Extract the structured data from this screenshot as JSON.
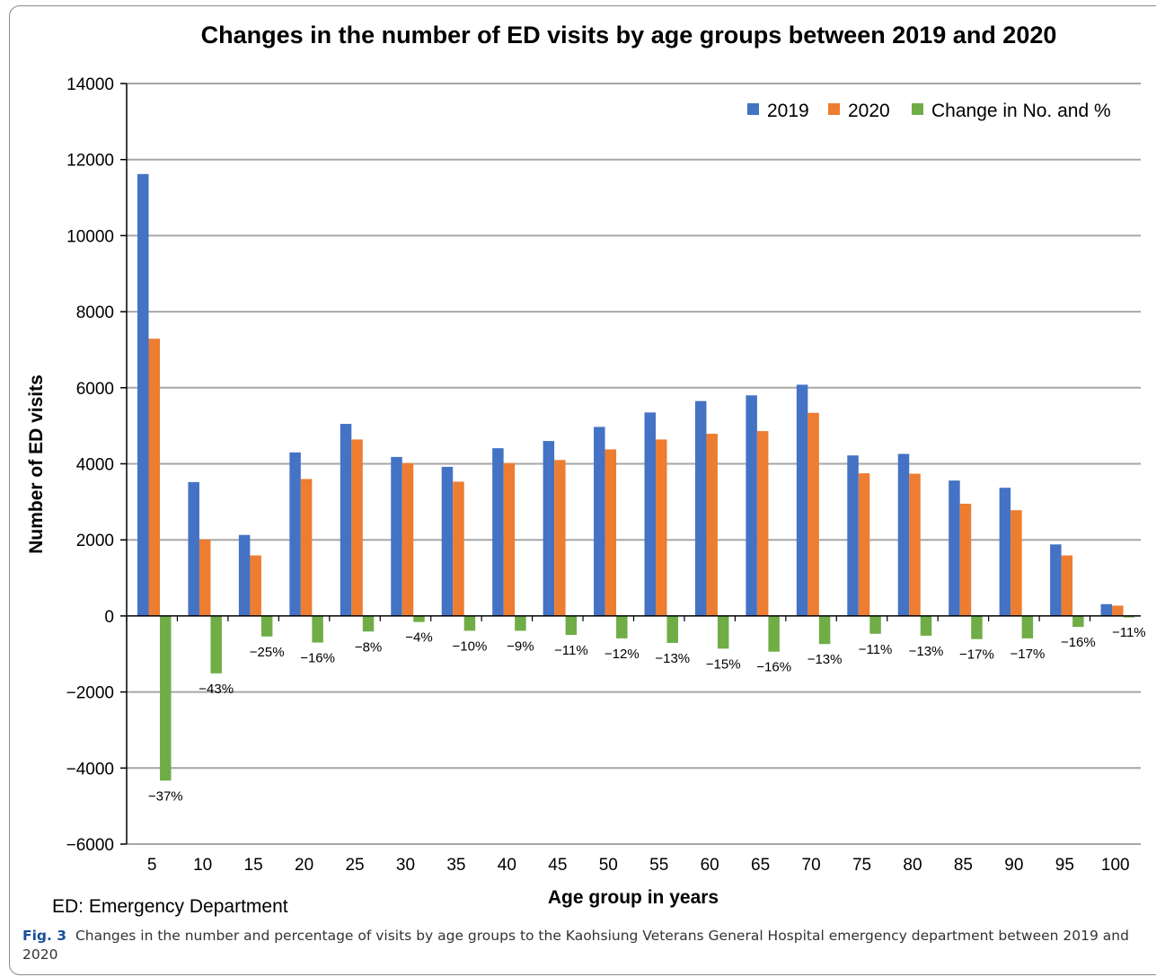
{
  "chart_data": {
    "type": "bar",
    "title": "Changes in the number of ED visits by age groups between 2019 and 2020",
    "xlabel": "Age group in years",
    "ylabel": "Number of ED visits",
    "ylim": [
      -6000,
      14000
    ],
    "yticks": [
      14000,
      12000,
      10000,
      8000,
      6000,
      4000,
      2000,
      0,
      -2000,
      -4000,
      -6000
    ],
    "ytick_labels": [
      "14000",
      "12000",
      "10000",
      "8000",
      "6000",
      "4000",
      "2000",
      "0",
      "−2000",
      "−4000",
      "−6000"
    ],
    "grid": true,
    "legend_position": "top-right",
    "categories": [
      "5",
      "10",
      "15",
      "20",
      "25",
      "30",
      "35",
      "40",
      "45",
      "50",
      "55",
      "60",
      "65",
      "70",
      "75",
      "80",
      "85",
      "90",
      "95",
      "100"
    ],
    "series": [
      {
        "name": "2019",
        "color": "#4472C4",
        "values": [
          11620,
          3520,
          2130,
          4300,
          5050,
          4180,
          3920,
          4410,
          4600,
          4970,
          5350,
          5650,
          5800,
          6080,
          4220,
          4260,
          3560,
          3370,
          1880,
          310
        ]
      },
      {
        "name": "2020",
        "color": "#ED7D31",
        "values": [
          7290,
          2010,
          1590,
          3600,
          4640,
          4020,
          3530,
          4020,
          4100,
          4380,
          4640,
          4790,
          4860,
          5340,
          3750,
          3740,
          2950,
          2780,
          1590,
          270
        ]
      },
      {
        "name": "Change in No. and %",
        "color": "#70AD47",
        "values": [
          -4330,
          -1510,
          -540,
          -700,
          -410,
          -160,
          -390,
          -390,
          -500,
          -590,
          -710,
          -860,
          -940,
          -740,
          -470,
          -520,
          -610,
          -590,
          -290,
          -40
        ]
      }
    ],
    "pct_labels": [
      "−37%",
      "−43%",
      "−25%",
      "−16%",
      "−8%",
      "−4%",
      "−10%",
      "−9%",
      "−11%",
      "−12%",
      "−13%",
      "−15%",
      "−16%",
      "−13%",
      "−11%",
      "−13%",
      "−17%",
      "−17%",
      "−16%",
      "−11%"
    ]
  },
  "footnote": "ED: Emergency Department",
  "caption": {
    "label": "Fig. 3",
    "text": "Changes in the number and percentage of visits by age groups to the Kaohsiung Veterans General Hospital emergency department between 2019 and 2020"
  }
}
